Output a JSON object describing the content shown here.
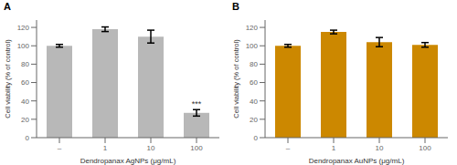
{
  "chart_data": [
    {
      "type": "bar",
      "title": "A",
      "categories": [
        "–",
        "1",
        "10",
        "100"
      ],
      "values": [
        100,
        118,
        110,
        27
      ],
      "errors": [
        1.5,
        2.5,
        7,
        3.5
      ],
      "color": "#b8b8b8",
      "xlabel": "Dendropanax AgNPs (μg/mL)",
      "ylabel": "Cell viability (% of control)",
      "ylim": [
        0,
        128
      ],
      "yticks": [
        0,
        20,
        40,
        60,
        80,
        100,
        120
      ],
      "annotations": [
        {
          "category": "100",
          "text": "***"
        }
      ]
    },
    {
      "type": "bar",
      "title": "B",
      "categories": [
        "–",
        "1",
        "10",
        "100"
      ],
      "values": [
        100,
        115,
        104,
        101
      ],
      "errors": [
        1.5,
        2.0,
        5,
        2.5
      ],
      "color": "#cc8800",
      "xlabel": "Dendropanax AuNPs (μg/mL)",
      "ylabel": "Cell viability (% of control)",
      "ylim": [
        0,
        128
      ],
      "yticks": [
        0,
        20,
        40,
        60,
        80,
        100,
        120
      ]
    }
  ]
}
